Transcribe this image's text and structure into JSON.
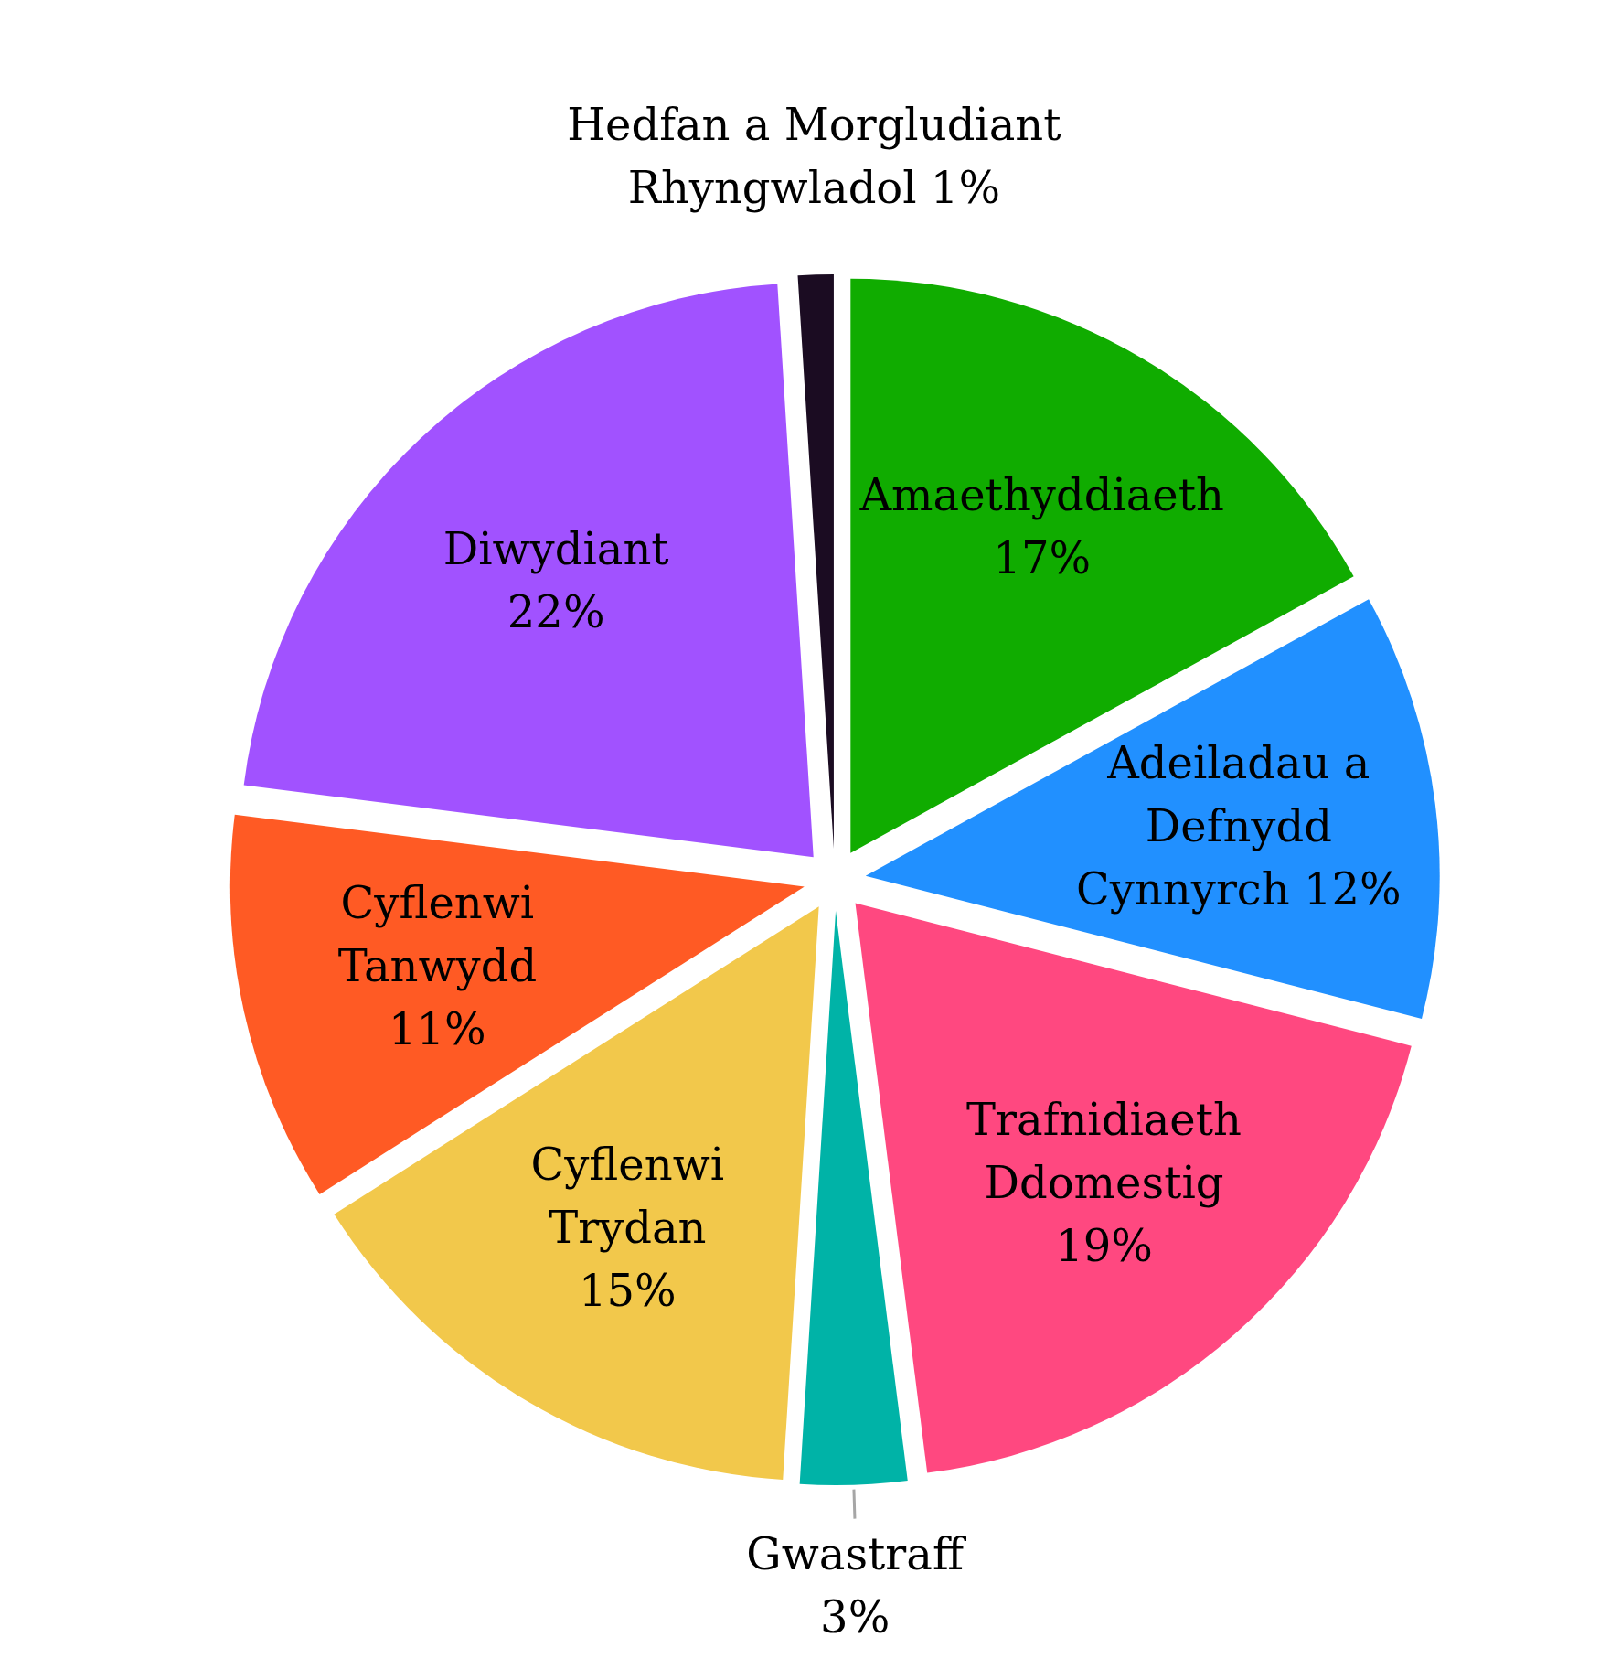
{
  "chart_data": {
    "type": "pie",
    "categories": [
      "Amaethyddiaeth",
      "Adeiladau a Defnydd Cynnyrch",
      "Trafnidiaeth Ddomestig",
      "Gwastraff",
      "Cyflenwi Trydan",
      "Cyflenwi Tanwydd",
      "Diwydiant",
      "Hedfan a Morgludiant Rhyngwladol"
    ],
    "values": [
      17,
      12,
      19,
      3,
      15,
      11,
      22,
      1
    ],
    "colors": [
      "#10ac00",
      "#2190ff",
      "#ff4880",
      "#00b3a7",
      "#f2c84b",
      "#ff5a24",
      "#a152ff",
      "#1b0c22"
    ],
    "value_labels": [
      "17%",
      "12%",
      "19%",
      "3%",
      "15%",
      "11%",
      "22%",
      "1%"
    ]
  }
}
